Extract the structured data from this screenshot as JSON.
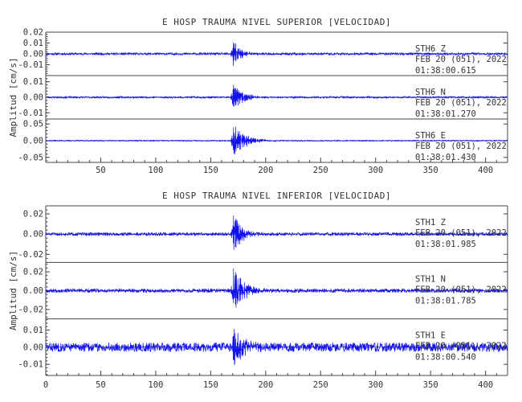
{
  "colors": {
    "trace": "#1010ee",
    "frame": "#444444",
    "text": "#333333"
  },
  "chart_data": [
    {
      "type": "line",
      "title": "E HOSP TRAUMA NIVEL SUPERIOR [VELOCIDAD]",
      "ylabel": "Amplitud [cm/s]",
      "xlim": [
        0,
        420
      ],
      "x_ticks": [
        50,
        100,
        150,
        200,
        250,
        300,
        350,
        400
      ],
      "x_tick_labels": [
        "50",
        "100",
        "150",
        "200",
        "250",
        "300",
        "350",
        "400"
      ],
      "event_x": 170,
      "panels": [
        {
          "station": "STH6",
          "component": "Z",
          "date": "FEB 20 (051), 2022",
          "time": "01:38:00.615",
          "ylim": [
            -0.02,
            0.02
          ],
          "yticks": [
            -0.01,
            0.0,
            0.01,
            0.02
          ],
          "ytick_labels": [
            "-0.01",
            "0.00",
            "0.01",
            "0.02"
          ],
          "noise": 0.0007,
          "peak": 0.015,
          "decay": 6,
          "seed": 11
        },
        {
          "station": "STH6",
          "component": "N",
          "date": "FEB 20 (051), 2022",
          "time": "01:38:01.270",
          "ylim": [
            -0.014,
            0.014
          ],
          "yticks": [
            -0.01,
            0.0,
            0.01
          ],
          "ytick_labels": [
            "-0.01",
            "0.00",
            "0.01"
          ],
          "noise": 0.0004,
          "peak": 0.012,
          "decay": 8,
          "seed": 23
        },
        {
          "station": "STH6",
          "component": "E",
          "date": "FEB 20 (051), 2022",
          "time": "01:38:01.430",
          "ylim": [
            -0.065,
            0.065
          ],
          "yticks": [
            -0.05,
            0.0,
            0.05
          ],
          "ytick_labels": [
            "-0.05",
            "0.00",
            "0.05"
          ],
          "noise": 0.0012,
          "peak": 0.06,
          "decay": 10,
          "seed": 37
        }
      ]
    },
    {
      "type": "line",
      "title": "E HOSP TRAUMA NIVEL INFERIOR [VELOCIDAD]",
      "ylabel": "Amplitud [cm/s]",
      "xlim": [
        0,
        420
      ],
      "x_ticks": [
        0,
        50,
        100,
        150,
        200,
        250,
        300,
        350,
        400
      ],
      "x_tick_labels": [
        "0",
        "50",
        "100",
        "150",
        "200",
        "250",
        "300",
        "350",
        "400"
      ],
      "event_x": 170,
      "panels": [
        {
          "station": "STH1",
          "component": "Z",
          "date": "FEB 20 (051), 2022",
          "time": "01:38:01.985",
          "ylim": [
            -0.028,
            0.028
          ],
          "yticks": [
            -0.02,
            0.0,
            0.02
          ],
          "ytick_labels": [
            "-0.02",
            "0.00",
            "0.02"
          ],
          "noise": 0.001,
          "peak": 0.025,
          "decay": 7,
          "seed": 51
        },
        {
          "station": "STH1",
          "component": "N",
          "date": "FEB 20 (051), 2022",
          "time": "01:38:01.785",
          "ylim": [
            -0.03,
            0.03
          ],
          "yticks": [
            -0.02,
            0.0,
            0.02
          ],
          "ytick_labels": [
            "-0.02",
            "0.00",
            "0.02"
          ],
          "noise": 0.0012,
          "peak": 0.028,
          "decay": 9,
          "seed": 67
        },
        {
          "station": "STH1",
          "component": "E",
          "date": "FEB 20 (051), 2022",
          "time": "01:38:00.540",
          "ylim": [
            -0.0165,
            0.0165
          ],
          "yticks": [
            -0.01,
            0.0,
            0.01
          ],
          "ytick_labels": [
            "-0.01",
            "0.00",
            "0.01"
          ],
          "noise": 0.0016,
          "peak": 0.014,
          "decay": 9,
          "seed": 83
        }
      ]
    }
  ]
}
